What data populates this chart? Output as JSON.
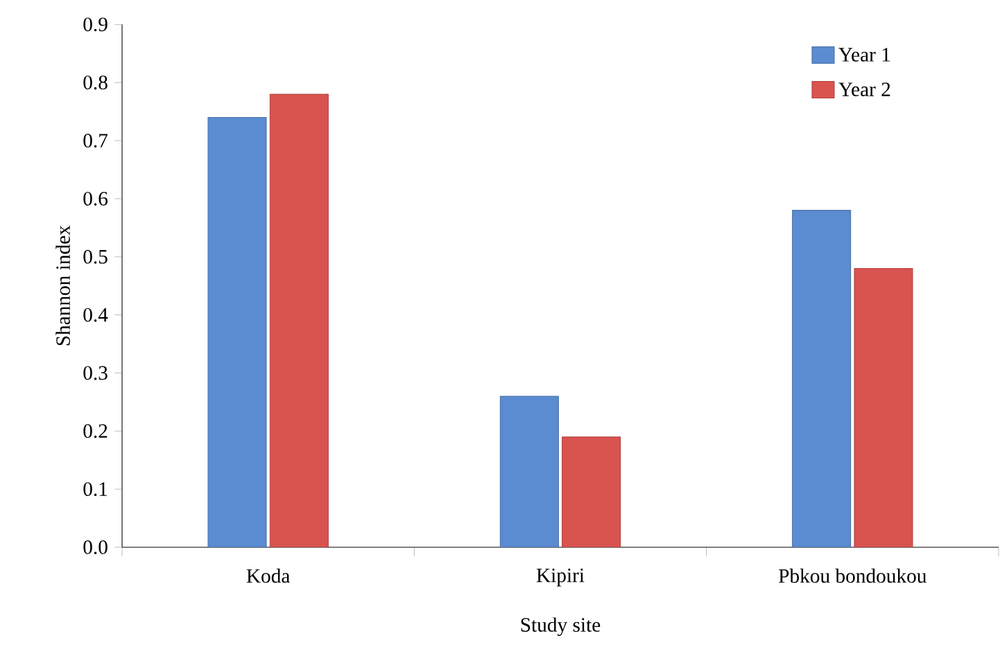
{
  "chart_data": {
    "type": "bar",
    "xlabel": "Study site",
    "ylabel": "Shannon index",
    "categories": [
      "Koda",
      "Kipiri",
      "Pbkou bondoukou"
    ],
    "series": [
      {
        "name": "Year 1",
        "color": "#5b8bd0",
        "values": [
          0.74,
          0.26,
          0.58
        ]
      },
      {
        "name": "Year 2",
        "color": "#d9534f",
        "values": [
          0.78,
          0.19,
          0.48
        ]
      }
    ],
    "ylim": [
      0,
      0.9
    ],
    "yticks": [
      {
        "value": 0,
        "label": "0.0"
      },
      0.1,
      0.2,
      0.3,
      0.4,
      0.5,
      0.6,
      0.7,
      0.8,
      0.9
    ],
    "grid": false,
    "legend": "top right"
  }
}
